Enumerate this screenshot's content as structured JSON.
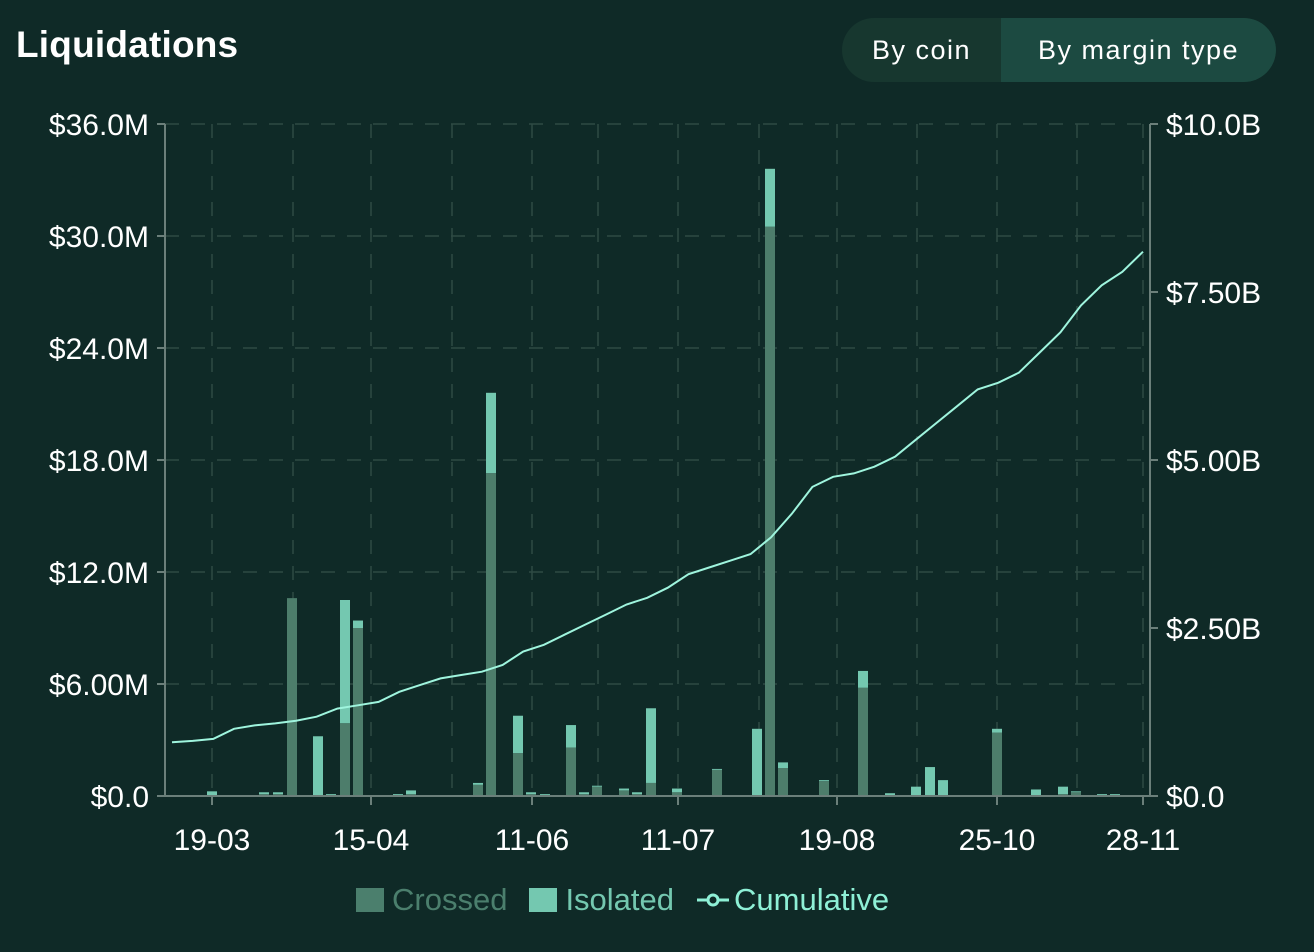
{
  "header": {
    "title": "Liquidations",
    "toggle": {
      "by_coin": "By coin",
      "by_margin_type": "By margin type",
      "selected": "By margin type"
    }
  },
  "colors": {
    "background": "#0f2a27",
    "crossed": "#4d7d6b",
    "isolated": "#74c8b0",
    "cumulative": "#9ff5de",
    "grid": "#2e4a44",
    "axis": "#6b7f7a"
  },
  "chart_data": {
    "type": "bar",
    "title": "Liquidations",
    "x_ticks": [
      "19-03",
      "15-04",
      "11-06",
      "11-07",
      "19-08",
      "25-10",
      "28-11"
    ],
    "y_left_ticks": [
      "$0.0",
      "$6.00M",
      "$12.0M",
      "$18.0M",
      "$24.0M",
      "$30.0M",
      "$36.0M"
    ],
    "y_right_ticks": [
      "$0.0",
      "$2.50B",
      "$5.00B",
      "$7.50B",
      "$10.0B"
    ],
    "y_left_range_musd": [
      0,
      36
    ],
    "y_right_range_busd": [
      0,
      10
    ],
    "stacked": true,
    "legend": [
      "Crossed",
      "Isolated",
      "Cumulative"
    ],
    "legend_position": "bottom",
    "grid": true,
    "bars_musd": [
      {
        "crossed": 0.05,
        "isolated": 0.2
      },
      {
        "crossed": 0.1,
        "isolated": 0.1
      },
      {
        "crossed": 0.1,
        "isolated": 0.1
      },
      {
        "crossed": 10.6,
        "isolated": 0.0
      },
      {
        "crossed": 0.0,
        "isolated": 3.2
      },
      {
        "crossed": 0.05,
        "isolated": 0.05
      },
      {
        "crossed": 3.9,
        "isolated": 6.6
      },
      {
        "crossed": 9.0,
        "isolated": 0.4
      },
      {
        "crossed": 0.05,
        "isolated": 0.05
      },
      {
        "crossed": 0.1,
        "isolated": 0.2
      },
      {
        "crossed": 0.6,
        "isolated": 0.1
      },
      {
        "crossed": 17.3,
        "isolated": 4.3
      },
      {
        "crossed": 2.3,
        "isolated": 2.0
      },
      {
        "crossed": 0.1,
        "isolated": 0.1
      },
      {
        "crossed": 0.05,
        "isolated": 0.05
      },
      {
        "crossed": 2.6,
        "isolated": 1.2
      },
      {
        "crossed": 0.1,
        "isolated": 0.1
      },
      {
        "crossed": 0.5,
        "isolated": 0.05
      },
      {
        "crossed": 0.3,
        "isolated": 0.1
      },
      {
        "crossed": 0.1,
        "isolated": 0.1
      },
      {
        "crossed": 0.7,
        "isolated": 4.0
      },
      {
        "crossed": 0.2,
        "isolated": 0.2
      },
      {
        "crossed": 1.4,
        "isolated": 0.05
      },
      {
        "crossed": 0.0,
        "isolated": 3.6
      },
      {
        "crossed": 30.5,
        "isolated": 3.1
      },
      {
        "crossed": 1.5,
        "isolated": 0.3
      },
      {
        "crossed": 0.8,
        "isolated": 0.05
      },
      {
        "crossed": 5.8,
        "isolated": 0.9
      },
      {
        "crossed": 0.05,
        "isolated": 0.1
      },
      {
        "crossed": 0.0,
        "isolated": 0.5
      },
      {
        "crossed": 0.05,
        "isolated": 1.5
      },
      {
        "crossed": 0.05,
        "isolated": 0.8
      },
      {
        "crossed": 3.4,
        "isolated": 0.2
      },
      {
        "crossed": 0.05,
        "isolated": 0.3
      },
      {
        "crossed": 0.1,
        "isolated": 0.4
      },
      {
        "crossed": 0.2,
        "isolated": 0.05
      },
      {
        "crossed": 0.05,
        "isolated": 0.05
      },
      {
        "crossed": 0.05,
        "isolated": 0.05
      }
    ],
    "cumulative_busd": [
      0.8,
      0.82,
      0.85,
      1.0,
      1.05,
      1.08,
      1.12,
      1.18,
      1.3,
      1.35,
      1.4,
      1.55,
      1.65,
      1.75,
      1.8,
      1.85,
      1.95,
      2.15,
      2.25,
      2.4,
      2.55,
      2.7,
      2.85,
      2.95,
      3.1,
      3.3,
      3.4,
      3.5,
      3.6,
      3.85,
      4.2,
      4.6,
      4.75,
      4.8,
      4.9,
      5.05,
      5.3,
      5.55,
      5.8,
      6.05,
      6.15,
      6.3,
      6.6,
      6.9,
      7.3,
      7.6,
      7.8,
      8.1
    ]
  }
}
